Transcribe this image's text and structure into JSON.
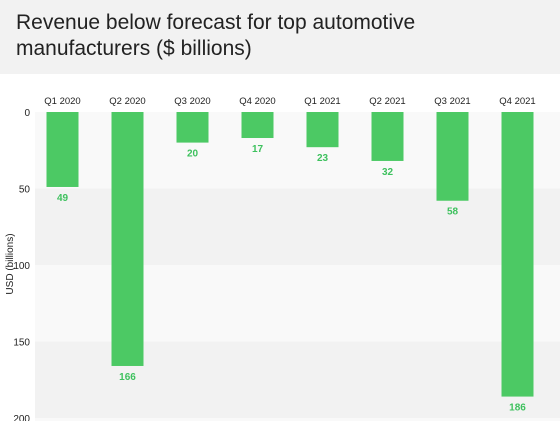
{
  "chart_data": {
    "type": "bar",
    "title": "Revenue below forecast for top automotive manufacturers ($ billions)",
    "xlabel": "",
    "ylabel": "USD (billions)",
    "categories": [
      "Q1 2020",
      "Q2 2020",
      "Q3 2020",
      "Q4 2020",
      "Q1 2021",
      "Q2 2021",
      "Q3 2021",
      "Q4 2021"
    ],
    "values": [
      49,
      166,
      20,
      17,
      23,
      32,
      58,
      186
    ],
    "ylim": [
      0,
      200
    ],
    "yticks": [
      0,
      50,
      100,
      150,
      200
    ],
    "y_inverted": true,
    "x_axis_position": "top",
    "grid": false,
    "legend": "none",
    "colors": {
      "bar": "#4cc964",
      "data_label": "#3ec15e",
      "band_light": "#f9f9f9",
      "band_dark": "#f2f2f2",
      "header_bg": "#f2f2f2"
    }
  }
}
